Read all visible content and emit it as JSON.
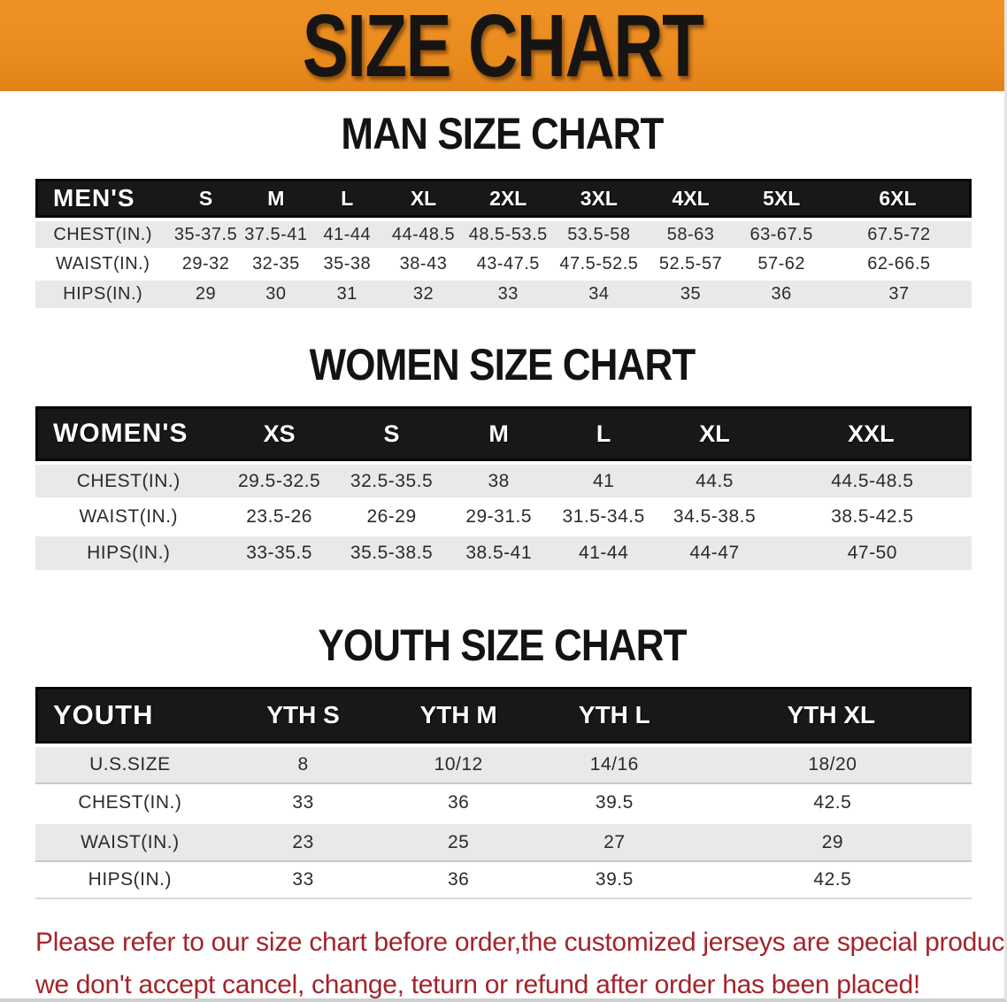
{
  "banner": {
    "title": "SIZE CHART"
  },
  "colors": {
    "banner_bg": "#e98a1d",
    "table_header_bg": "#181818",
    "row_alt_bg": "#e9e9e9",
    "disclaimer_red": "#a3242b"
  },
  "sections": [
    {
      "heading": "MAN SIZE CHART",
      "header_label": "MEN'S",
      "columns": [
        "S",
        "M",
        "L",
        "XL",
        "2XL",
        "3XL",
        "4XL",
        "5XL",
        "6XL"
      ],
      "rows": [
        {
          "label": "CHEST(IN.)",
          "values": [
            "35-37.5",
            "37.5-41",
            "41-44",
            "44-48.5",
            "48.5-53.5",
            "53.5-58",
            "58-63",
            "63-67.5",
            "67.5-72"
          ]
        },
        {
          "label": "WAIST(IN.)",
          "values": [
            "29-32",
            "32-35",
            "35-38",
            "38-43",
            "43-47.5",
            "47.5-52.5",
            "52.5-57",
            "57-62",
            "62-66.5"
          ]
        },
        {
          "label": "HIPS(IN.)",
          "values": [
            "29",
            "30",
            "31",
            "32",
            "33",
            "34",
            "35",
            "36",
            "37"
          ]
        }
      ]
    },
    {
      "heading": "WOMEN SIZE CHART",
      "header_label": "WOMEN'S",
      "columns": [
        "XS",
        "S",
        "M",
        "L",
        "XL",
        "XXL"
      ],
      "rows": [
        {
          "label": "CHEST(IN.)",
          "values": [
            "29.5-32.5",
            "32.5-35.5",
            "38",
            "41",
            "44.5",
            "44.5-48.5"
          ]
        },
        {
          "label": "WAIST(IN.)",
          "values": [
            "23.5-26",
            "26-29",
            "29-31.5",
            "31.5-34.5",
            "34.5-38.5",
            "38.5-42.5"
          ]
        },
        {
          "label": "HIPS(IN.)",
          "values": [
            "33-35.5",
            "35.5-38.5",
            "38.5-41",
            "41-44",
            "44-47",
            "47-50"
          ]
        }
      ]
    },
    {
      "heading": "YOUTH SIZE CHART",
      "header_label": "YOUTH",
      "columns": [
        "YTH S",
        "YTH M",
        "YTH L",
        "YTH XL"
      ],
      "rows": [
        {
          "label": "U.S.SIZE",
          "values": [
            "8",
            "10/12",
            "14/16",
            "18/20"
          ]
        },
        {
          "label": "CHEST(IN.)",
          "values": [
            "33",
            "36",
            "39.5",
            "42.5"
          ]
        },
        {
          "label": "WAIST(IN.)",
          "values": [
            "23",
            "25",
            "27",
            "29"
          ]
        },
        {
          "label": "HIPS(IN.)",
          "values": [
            "33",
            "36",
            "39.5",
            "42.5"
          ]
        }
      ]
    }
  ],
  "disclaimer": {
    "line1": "Please refer to our size chart before order,the customized jerseys are special products,",
    "line2": "we don't accept cancel, change, teturn or refund after order has been placed!"
  }
}
